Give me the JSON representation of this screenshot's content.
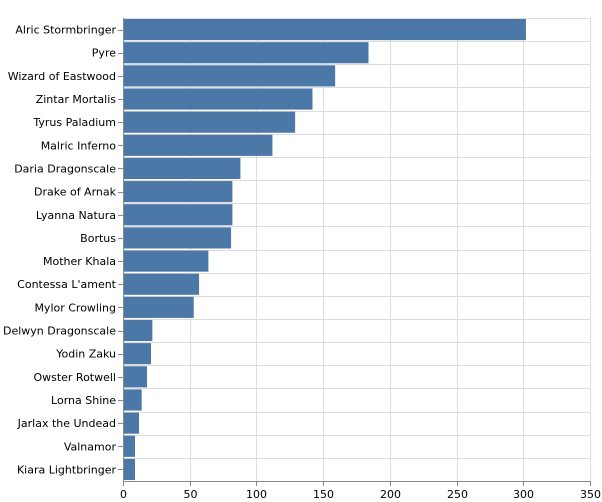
{
  "chart_data": {
    "type": "bar",
    "orientation": "horizontal",
    "title": "",
    "xlabel": "",
    "ylabel": "",
    "xlim": [
      0,
      350
    ],
    "xticks": [
      0,
      50,
      100,
      150,
      200,
      250,
      300,
      350
    ],
    "grid": true,
    "bar_color": "#4c78a8",
    "categories": [
      "Alric Stormbringer",
      "Pyre",
      "Wizard of Eastwood",
      "Zintar Mortalis",
      "Tyrus Paladium",
      "Malric Inferno",
      "Daria Dragonscale",
      "Drake of Arnak",
      "Lyanna Natura",
      "Bortus",
      "Mother Khala",
      "Contessa L'ament",
      "Mylor Crowling",
      "Delwyn Dragonscale",
      "Yodin Zaku",
      "Owster Rotwell",
      "Lorna Shine",
      "Jarlax the Undead",
      "Valnamor",
      "Kiara Lightbringer"
    ],
    "values": [
      302,
      184,
      159,
      142,
      129,
      112,
      88,
      82,
      82,
      81,
      64,
      57,
      53,
      22,
      21,
      18,
      14,
      12,
      9,
      9
    ]
  }
}
